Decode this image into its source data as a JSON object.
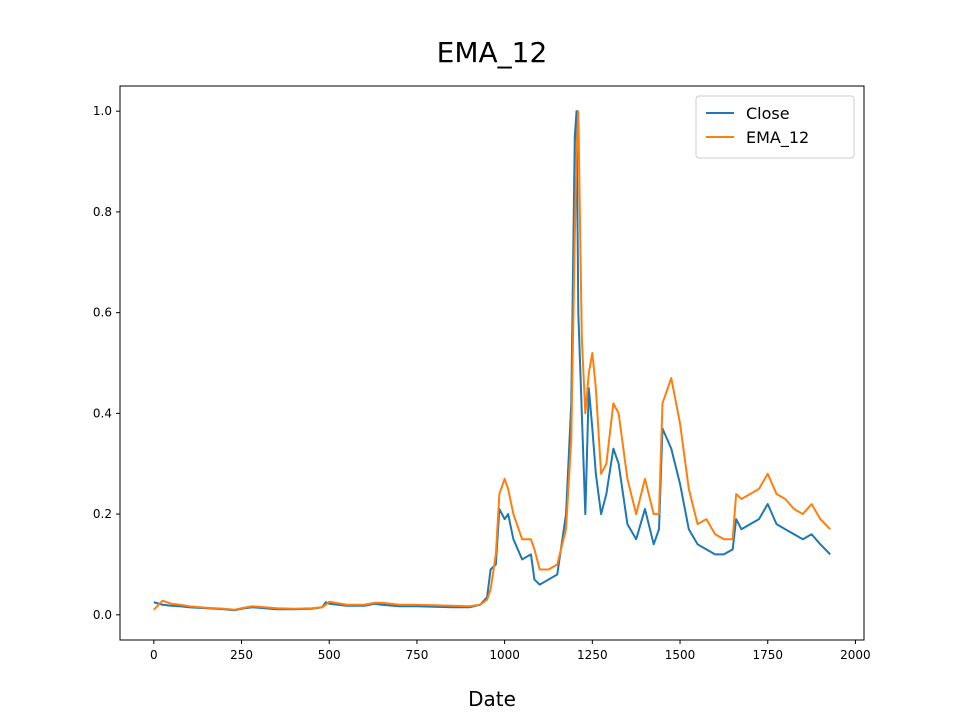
{
  "chart_data": {
    "type": "line",
    "title": "EMA_12",
    "x_label": "Date",
    "x": [
      0,
      25,
      50,
      75,
      100,
      150,
      200,
      230,
      250,
      280,
      300,
      350,
      400,
      450,
      480,
      490,
      500,
      550,
      600,
      630,
      650,
      700,
      750,
      800,
      850,
      900,
      930,
      950,
      960,
      975,
      985,
      1000,
      1010,
      1025,
      1050,
      1075,
      1085,
      1100,
      1125,
      1150,
      1175,
      1190,
      1200,
      1205,
      1210,
      1220,
      1230,
      1240,
      1250,
      1260,
      1275,
      1290,
      1310,
      1325,
      1350,
      1375,
      1400,
      1425,
      1440,
      1450,
      1475,
      1500,
      1525,
      1550,
      1575,
      1600,
      1625,
      1650,
      1660,
      1675,
      1700,
      1725,
      1750,
      1775,
      1800,
      1825,
      1850,
      1875,
      1900,
      1928
    ],
    "series": [
      {
        "name": "Close",
        "color": "#1f77b4",
        "values": [
          0.025,
          0.02,
          0.018,
          0.017,
          0.015,
          0.013,
          0.011,
          0.009,
          0.012,
          0.015,
          0.014,
          0.011,
          0.011,
          0.012,
          0.015,
          0.025,
          0.022,
          0.018,
          0.018,
          0.022,
          0.02,
          0.017,
          0.017,
          0.016,
          0.015,
          0.015,
          0.02,
          0.035,
          0.09,
          0.1,
          0.21,
          0.19,
          0.2,
          0.15,
          0.11,
          0.12,
          0.07,
          0.06,
          0.07,
          0.08,
          0.2,
          0.42,
          0.95,
          1.0,
          0.6,
          0.4,
          0.2,
          0.45,
          0.37,
          0.28,
          0.2,
          0.24,
          0.33,
          0.3,
          0.18,
          0.15,
          0.21,
          0.14,
          0.17,
          0.37,
          0.33,
          0.26,
          0.17,
          0.14,
          0.13,
          0.12,
          0.12,
          0.13,
          0.19,
          0.17,
          0.18,
          0.19,
          0.22,
          0.18,
          0.17,
          0.16,
          0.15,
          0.16,
          0.14,
          0.12
        ]
      },
      {
        "name": "EMA_12",
        "color": "#ff7f0e",
        "values": [
          0.01,
          0.028,
          0.022,
          0.02,
          0.017,
          0.014,
          0.012,
          0.01,
          0.013,
          0.017,
          0.016,
          0.013,
          0.012,
          0.013,
          0.015,
          0.02,
          0.026,
          0.02,
          0.02,
          0.024,
          0.024,
          0.02,
          0.02,
          0.019,
          0.018,
          0.017,
          0.02,
          0.03,
          0.05,
          0.12,
          0.24,
          0.27,
          0.25,
          0.2,
          0.15,
          0.15,
          0.13,
          0.09,
          0.09,
          0.1,
          0.17,
          0.35,
          0.75,
          0.92,
          1.0,
          0.55,
          0.4,
          0.48,
          0.52,
          0.45,
          0.28,
          0.3,
          0.42,
          0.4,
          0.27,
          0.2,
          0.27,
          0.2,
          0.2,
          0.42,
          0.47,
          0.38,
          0.25,
          0.18,
          0.19,
          0.16,
          0.15,
          0.15,
          0.24,
          0.23,
          0.24,
          0.25,
          0.28,
          0.24,
          0.23,
          0.21,
          0.2,
          0.22,
          0.19,
          0.17
        ]
      }
    ],
    "xlim": [
      -96.4,
      2024.4
    ],
    "xticks": [
      0,
      250,
      500,
      750,
      1000,
      1250,
      1500,
      1750,
      2000
    ],
    "ylim": [
      -0.05,
      1.05
    ],
    "yticks": [
      {
        "value": 0,
        "label": "0.0"
      },
      0.2,
      0.4,
      0.6,
      0.8,
      {
        "value": 1,
        "label": "1.0"
      }
    ],
    "legend": "upper right",
    "grid": false
  }
}
